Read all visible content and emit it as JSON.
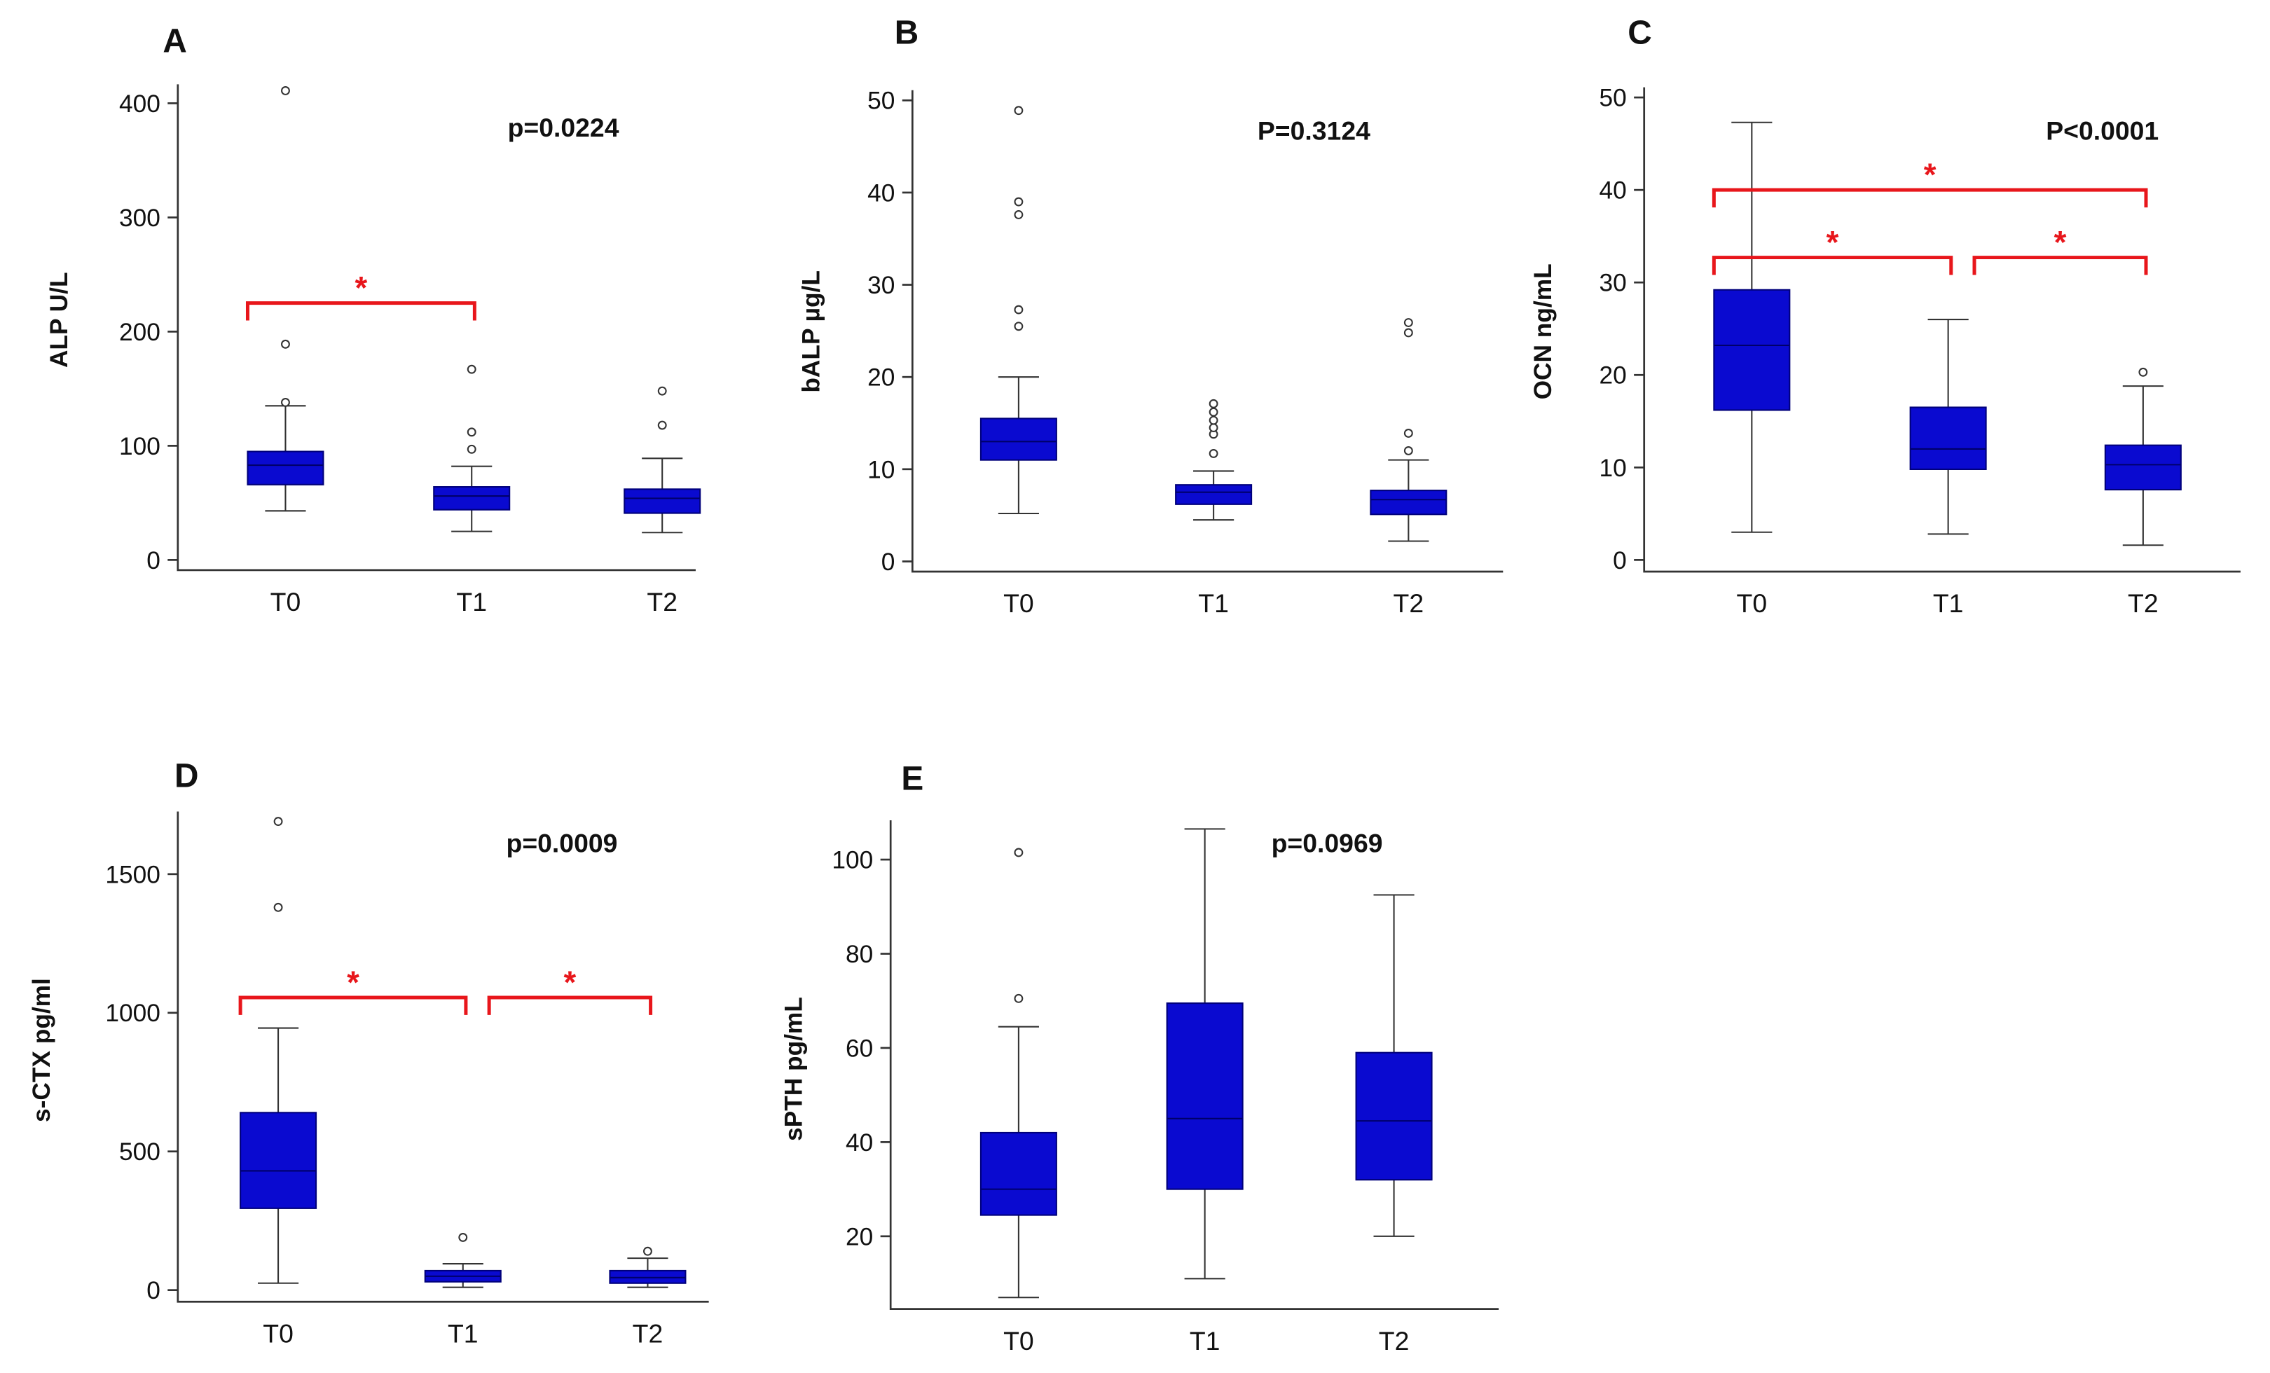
{
  "chart_data": [
    {
      "type": "box",
      "panel_label": "A",
      "ylabel": "ALP U/L",
      "p_value": "p=0.0224",
      "categories": [
        "T0",
        "T1",
        "T2"
      ],
      "yticks": [
        0,
        100,
        200,
        300,
        400
      ],
      "boxes": [
        {
          "min": 43,
          "q1": 66,
          "median": 83,
          "q3": 95,
          "max": 135,
          "outliers": [
            138,
            189,
            411
          ]
        },
        {
          "min": 25,
          "q1": 44,
          "median": 56,
          "q3": 64,
          "max": 82,
          "outliers": [
            97,
            112,
            167
          ]
        },
        {
          "min": 24,
          "q1": 41,
          "median": 54,
          "q3": 62,
          "max": 89,
          "outliers": [
            118,
            148
          ]
        }
      ],
      "brackets": [
        {
          "from": 0,
          "to": 1,
          "y": 225,
          "label": "*"
        }
      ]
    },
    {
      "type": "box",
      "panel_label": "B",
      "ylabel": "bALP µg/L",
      "p_value": "P=0.3124",
      "categories": [
        "T0",
        "T1",
        "T2"
      ],
      "yticks": [
        0,
        10,
        20,
        30,
        40,
        50
      ],
      "boxes": [
        {
          "min": 5.2,
          "q1": 11,
          "median": 13,
          "q3": 15.5,
          "max": 20,
          "outliers": [
            25.5,
            27.3,
            37.6,
            39,
            48.9
          ]
        },
        {
          "min": 4.5,
          "q1": 6.2,
          "median": 7.5,
          "q3": 8.3,
          "max": 9.8,
          "outliers": [
            11.7,
            13.8,
            14.5,
            15.3,
            16.2,
            17.1
          ]
        },
        {
          "min": 2.2,
          "q1": 5.1,
          "median": 6.7,
          "q3": 7.7,
          "max": 11,
          "outliers": [
            12,
            13.9,
            24.8,
            25.9
          ]
        }
      ],
      "brackets": []
    },
    {
      "type": "box",
      "panel_label": "C",
      "ylabel": "OCN ng/mL",
      "p_value": "P<0.0001",
      "categories": [
        "T0",
        "T1",
        "T2"
      ],
      "yticks": [
        0,
        10,
        20,
        30,
        40,
        50
      ],
      "boxes": [
        {
          "min": 3,
          "q1": 16.2,
          "median": 23.2,
          "q3": 29.2,
          "max": 47.3,
          "outliers": []
        },
        {
          "min": 2.8,
          "q1": 9.8,
          "median": 12,
          "q3": 16.5,
          "max": 26,
          "outliers": []
        },
        {
          "min": 1.6,
          "q1": 7.6,
          "median": 10.3,
          "q3": 12.4,
          "max": 18.8,
          "outliers": [
            20.3
          ]
        }
      ],
      "brackets": [
        {
          "from": 0,
          "to": 2,
          "y": 40,
          "label": "*"
        },
        {
          "from": 0,
          "to": 1,
          "y": 32.7,
          "label": "*"
        },
        {
          "from": 1,
          "to": 2,
          "y": 32.7,
          "label": "*"
        }
      ]
    },
    {
      "type": "box",
      "panel_label": "D",
      "ylabel": "s-CTX pg/ml",
      "p_value": "p=0.0009",
      "categories": [
        "T0",
        "T1",
        "T2"
      ],
      "yticks": [
        0,
        500,
        1000,
        1500
      ],
      "boxes": [
        {
          "min": 25,
          "q1": 295,
          "median": 430,
          "q3": 640,
          "max": 945,
          "outliers": [
            1380,
            1690
          ]
        },
        {
          "min": 10,
          "q1": 30,
          "median": 50,
          "q3": 70,
          "max": 95,
          "outliers": [
            190
          ]
        },
        {
          "min": 10,
          "q1": 25,
          "median": 45,
          "q3": 70,
          "max": 115,
          "outliers": [
            140
          ]
        }
      ],
      "brackets": [
        {
          "from": 0,
          "to": 1,
          "y": 1055,
          "label": "*"
        },
        {
          "from": 1,
          "to": 2,
          "y": 1055,
          "label": "*"
        }
      ]
    },
    {
      "type": "box",
      "panel_label": "E",
      "ylabel": "sPTH pg/mL",
      "p_value": "p=0.0969",
      "categories": [
        "T0",
        "T1",
        "T2"
      ],
      "yticks": [
        20,
        40,
        60,
        80,
        100
      ],
      "boxes": [
        {
          "min": 7,
          "q1": 24.5,
          "median": 30,
          "q3": 42,
          "max": 64.5,
          "outliers": [
            70.5,
            101.5
          ]
        },
        {
          "min": 11,
          "q1": 30,
          "median": 45,
          "q3": 69.5,
          "max": 106.5,
          "outliers": []
        },
        {
          "min": 20,
          "q1": 32,
          "median": 44.5,
          "q3": 59,
          "max": 92.5,
          "outliers": []
        }
      ],
      "brackets": []
    }
  ]
}
